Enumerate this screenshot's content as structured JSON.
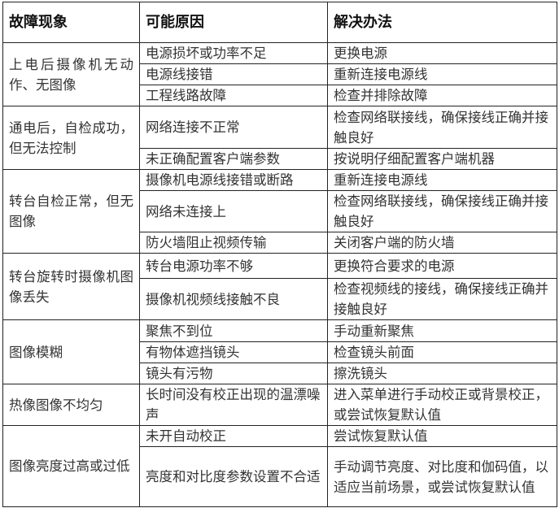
{
  "headers": [
    "故障现象",
    "可能原因",
    "解决办法"
  ],
  "groups": [
    {
      "symptom": "上电后摄像机无动作、无图像",
      "rows": [
        {
          "cause": "电源损坏或功率不足",
          "solution": "更换电源"
        },
        {
          "cause": "电源线接错",
          "solution": "重新连接电源线"
        },
        {
          "cause": "工程线路故障",
          "solution": "检查并排除故障"
        }
      ]
    },
    {
      "symptom": "通电后，自检成功，但无法控制",
      "rows": [
        {
          "cause": "网络连接不正常",
          "solution": "检查网络联接线，确保接线正确并接触良好"
        },
        {
          "cause": "未正确配置客户端参数",
          "solution": "按说明仔细配置客户端机器"
        }
      ]
    },
    {
      "symptom": "转台自检正常，但无图像",
      "rows": [
        {
          "cause": "摄像机电源线接错或断路",
          "solution": "重新连接电源线"
        },
        {
          "cause": "网络未连接上",
          "solution": "检查网络联接线，确保接线正确并接触良好"
        },
        {
          "cause": "防火墙阻止视频传输",
          "solution": "关闭客户端的防火墙"
        }
      ]
    },
    {
      "symptom": "转台旋转时摄像机图像丢失",
      "rows": [
        {
          "cause": "转台电源功率不够",
          "solution": "更换符合要求的电源"
        },
        {
          "cause": "摄像机视频线接触不良",
          "solution": "检查视频线的接线，确保接线正确并接触良好"
        }
      ]
    },
    {
      "symptom": "图像模糊",
      "rows": [
        {
          "cause": "聚焦不到位",
          "solution": "手动重新聚焦"
        },
        {
          "cause": "有物体遮挡镜头",
          "solution": "检查镜头前面"
        },
        {
          "cause": "镜头有污物",
          "solution": "擦洗镜头"
        }
      ]
    },
    {
      "symptom": "热像图像不均匀",
      "rows": [
        {
          "cause": "长时间没有校正出现的温漂噪声",
          "solution": "进入菜单进行手动校正或背景校正，或尝试恢复默认值"
        }
      ]
    },
    {
      "symptom": "图像亮度过高或过低",
      "rows": [
        {
          "cause": "未开自动校正",
          "solution": "尝试恢复默认值"
        },
        {
          "cause": "亮度和对比度参数设置不合适",
          "solution": "手动调节亮度、对比度和伽码值，以适应当前场景，或尝试恢复默认值"
        }
      ]
    }
  ]
}
